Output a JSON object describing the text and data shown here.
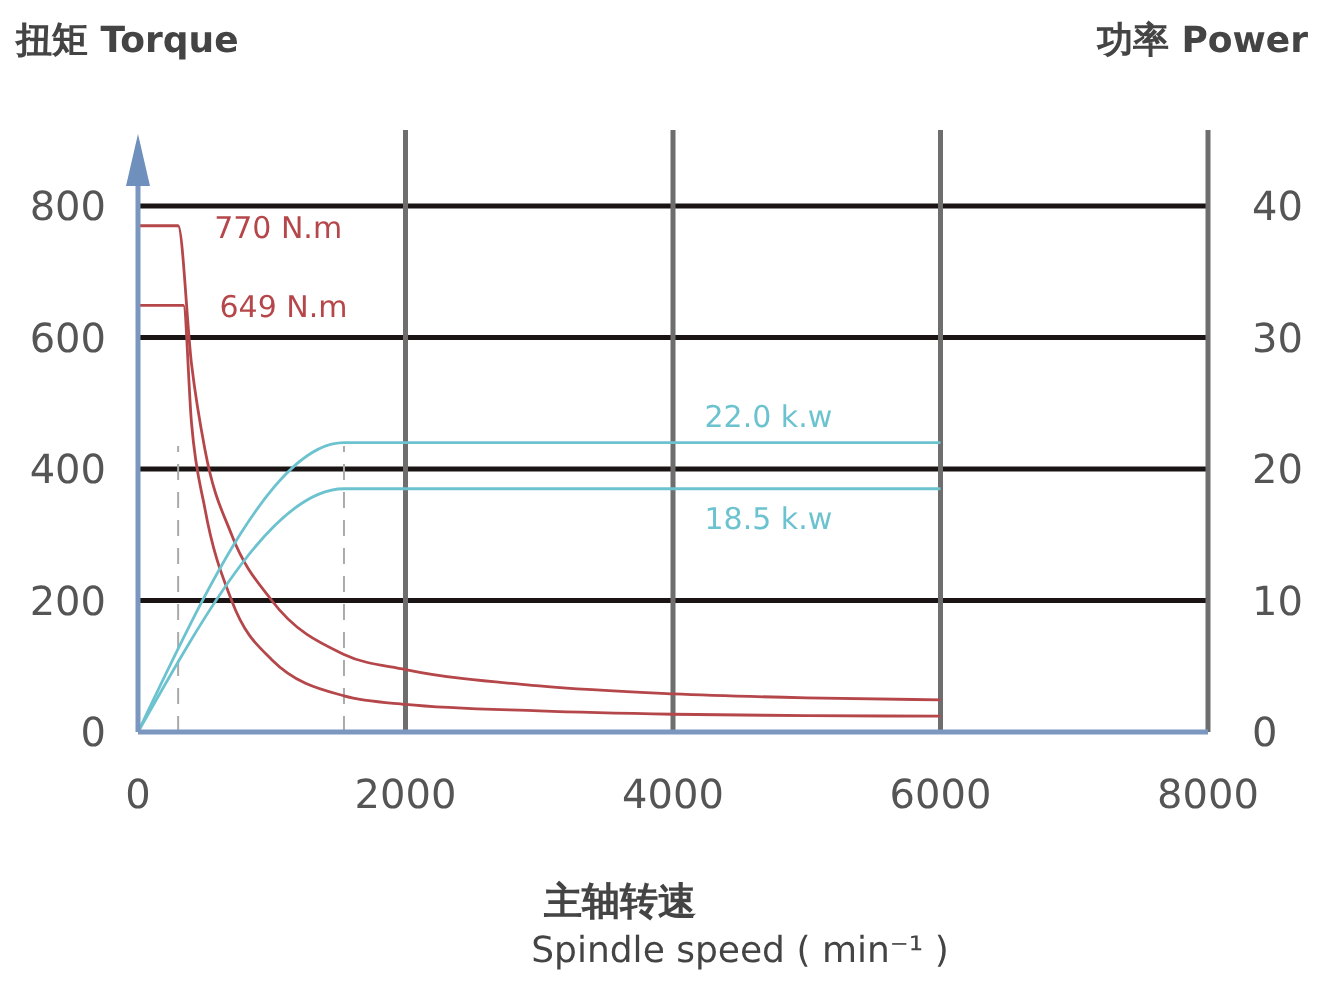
{
  "chart_data": {
    "type": "line",
    "ylabel": "扭矩 Torque",
    "y2label": "功率 Power",
    "xlabel": "主轴转速\nSpindle speed ( min⁻¹ )",
    "xlim": [
      0,
      8000
    ],
    "xticks": [
      0,
      2000,
      4000,
      6000,
      8000
    ],
    "ylim": [
      0,
      800
    ],
    "yticks": [
      0,
      200,
      400,
      600,
      800
    ],
    "y2lim": [
      0,
      40
    ],
    "y2ticks": [
      0,
      10,
      20,
      30,
      40
    ],
    "grid": true,
    "marker": "none",
    "line_style": "solid",
    "series": [
      {
        "color": "#b5474b",
        "x": [
          0,
          300,
          400,
          500,
          700,
          1000,
          1540,
          2000,
          3000,
          4000,
          5000,
          6000
        ],
        "values": [
          770,
          770,
          560,
          430,
          300,
          200,
          118,
          95,
          70,
          58,
          52,
          49
        ]
      },
      {
        "color": "#b5474b",
        "x": [
          0,
          340,
          400,
          500,
          700,
          1000,
          1540,
          2000,
          3000,
          4000,
          5000,
          6000
        ],
        "values": [
          649,
          649,
          470,
          340,
          200,
          110,
          55,
          42,
          32,
          27,
          25,
          24
        ]
      },
      {
        "color": "#6cc3cf",
        "axis": "y2",
        "x": [
          0,
          1540,
          6000
        ],
        "values": [
          0,
          22.0,
          22.0
        ]
      },
      {
        "color": "#6cc3cf",
        "axis": "y2",
        "x": [
          0,
          1540,
          6000
        ],
        "values": [
          0,
          18.5,
          18.5
        ]
      }
    ],
    "annotations": [
      "770 N.m",
      "649 N.m",
      "22.0 k.w",
      "18.5 k.w"
    ],
    "ref_lines": [
      {
        "axis": "x",
        "value": 300,
        "color": "#aaaaaa",
        "line_style": "dashed"
      },
      {
        "axis": "x",
        "value": 1540,
        "color": "#aaaaaa",
        "line_style": "dashed"
      }
    ]
  }
}
